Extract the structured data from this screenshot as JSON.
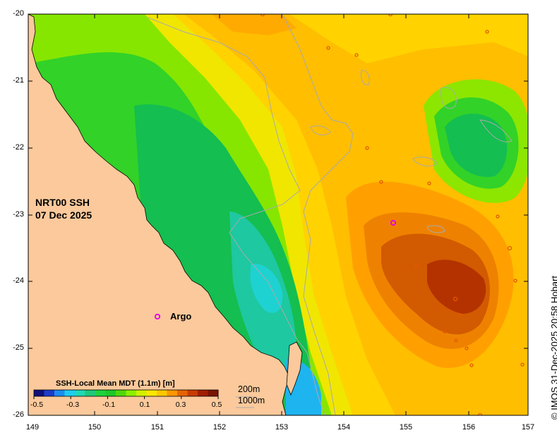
{
  "map": {
    "title_line1": "NRT00 SSH",
    "title_line2": "07 Dec 2025",
    "credit": "© IMOS 31-Dec-2025 20:58 Hobart",
    "argo_label": "Argo",
    "depth_contours": [
      "200m",
      "1000m"
    ],
    "lon_ticks": [
      "149",
      "150",
      "151",
      "152",
      "153",
      "154",
      "155",
      "156",
      "157"
    ],
    "lat_ticks": [
      "-20",
      "-21",
      "-22",
      "-23",
      "-24",
      "-25",
      "-26"
    ],
    "colorbar": {
      "title": "SSH-Local Mean MDT (1.1m) [m]",
      "ticks": [
        "-0.5",
        "-0.3",
        "-0.1",
        "0.1",
        "0.3",
        "0.5"
      ],
      "range": [
        -0.5,
        0.5
      ],
      "colors": [
        "#10107a",
        "#1e3cc8",
        "#1e8cf0",
        "#1ecdf0",
        "#1ed9b4",
        "#1ec878",
        "#1ed23c",
        "#1ec828",
        "#50d80a",
        "#8cf000",
        "#d2f000",
        "#ffe600",
        "#ffc800",
        "#ff9600",
        "#e66400",
        "#c83c00",
        "#a01e00",
        "#7a1400"
      ]
    },
    "colors": {
      "land": "#fbc99b",
      "coast": "#000000",
      "bathy": "#aaaaaa",
      "argo": "#e600e6"
    }
  }
}
